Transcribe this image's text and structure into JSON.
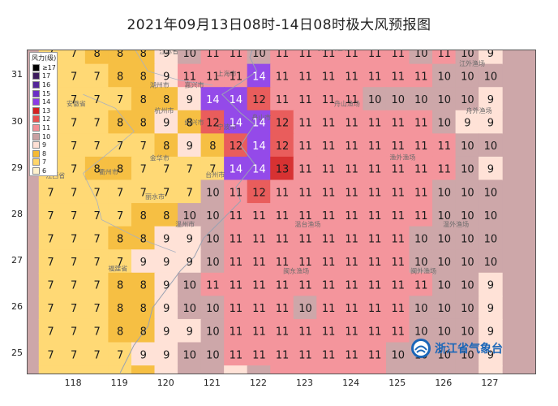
{
  "title": "2021年09月13日08时-14日08时极大风预报图",
  "map": {
    "lon_ticks": [
      "118",
      "119",
      "120",
      "121",
      "122",
      "123",
      "124",
      "125",
      "126",
      "127"
    ],
    "lat_ticks": [
      "31",
      "30",
      "29",
      "28",
      "27",
      "26",
      "25"
    ],
    "lon_range": [
      117.0,
      128.0
    ],
    "lat_range": [
      24.55,
      31.55
    ],
    "grid_lon_start": 117.5,
    "grid_lat_start": 31.5,
    "grid_step": 0.5,
    "wind_force_grid": [
      [
        7,
        7,
        8,
        8,
        8,
        9,
        10,
        11,
        11,
        10,
        11,
        11,
        11,
        11,
        11,
        11,
        10,
        11,
        10,
        9
      ],
      [
        7,
        7,
        7,
        8,
        8,
        9,
        11,
        11,
        11,
        14,
        11,
        11,
        11,
        11,
        11,
        11,
        11,
        10,
        10,
        10
      ],
      [
        7,
        7,
        7,
        7,
        8,
        8,
        9,
        14,
        14,
        12,
        11,
        11,
        11,
        11,
        10,
        10,
        10,
        10,
        10,
        9
      ],
      [
        7,
        7,
        7,
        8,
        8,
        9,
        8,
        12,
        14,
        14,
        12,
        11,
        11,
        11,
        11,
        11,
        11,
        10,
        9,
        9
      ],
      [
        7,
        7,
        7,
        7,
        7,
        8,
        9,
        8,
        12,
        14,
        12,
        11,
        11,
        11,
        11,
        11,
        11,
        11,
        10,
        10
      ],
      [
        7,
        7,
        8,
        8,
        7,
        7,
        7,
        7,
        14,
        14,
        13,
        11,
        11,
        11,
        11,
        11,
        11,
        11,
        10,
        9
      ],
      [
        7,
        7,
        7,
        7,
        7,
        7,
        7,
        10,
        11,
        12,
        11,
        11,
        11,
        11,
        11,
        11,
        11,
        10,
        10,
        10
      ],
      [
        7,
        7,
        7,
        7,
        8,
        8,
        10,
        10,
        11,
        11,
        11,
        11,
        11,
        11,
        11,
        11,
        11,
        10,
        10,
        10
      ],
      [
        7,
        7,
        7,
        8,
        8,
        9,
        9,
        10,
        11,
        11,
        11,
        11,
        11,
        11,
        11,
        11,
        10,
        10,
        10,
        10
      ],
      [
        7,
        7,
        7,
        7,
        9,
        9,
        9,
        10,
        11,
        11,
        11,
        11,
        11,
        11,
        11,
        11,
        10,
        10,
        10,
        10
      ],
      [
        7,
        7,
        7,
        8,
        8,
        9,
        10,
        11,
        11,
        11,
        11,
        11,
        11,
        11,
        11,
        11,
        11,
        10,
        10,
        9
      ],
      [
        7,
        7,
        7,
        8,
        8,
        9,
        10,
        10,
        11,
        11,
        11,
        10,
        11,
        11,
        11,
        11,
        10,
        10,
        10,
        9
      ],
      [
        7,
        7,
        7,
        8,
        8,
        9,
        9,
        10,
        11,
        11,
        11,
        11,
        11,
        11,
        11,
        11,
        10,
        10,
        10,
        9
      ],
      [
        7,
        7,
        7,
        7,
        9,
        9,
        10,
        10,
        11,
        11,
        11,
        11,
        11,
        11,
        11,
        10,
        10,
        10,
        10,
        9
      ],
      [
        7,
        7,
        7,
        7,
        8,
        9,
        10,
        10,
        9,
        10,
        11,
        11,
        11,
        11,
        11,
        10,
        10,
        10,
        10,
        9
      ],
      [
        7,
        7,
        7,
        7,
        9,
        9,
        9,
        7,
        8,
        9,
        11,
        11,
        11,
        11,
        10,
        10,
        10,
        10,
        10,
        9
      ]
    ],
    "place_labels": [
      {
        "name": "江苏省",
        "lon": 120.05,
        "lat": 31.48
      },
      {
        "name": "上海市",
        "lon": 121.3,
        "lat": 31.0
      },
      {
        "name": "湖州市",
        "lon": 119.85,
        "lat": 30.75
      },
      {
        "name": "嘉兴市",
        "lon": 120.6,
        "lat": 30.75
      },
      {
        "name": "安徽省",
        "lon": 118.05,
        "lat": 30.35
      },
      {
        "name": "杭州市",
        "lon": 119.95,
        "lat": 30.2
      },
      {
        "name": "舟山市",
        "lon": 122.05,
        "lat": 30.05
      },
      {
        "name": "宁波市",
        "lon": 121.3,
        "lat": 29.85
      },
      {
        "name": "绍兴市",
        "lon": 120.6,
        "lat": 29.95
      },
      {
        "name": "金华市",
        "lon": 119.85,
        "lat": 29.18
      },
      {
        "name": "衢州市",
        "lon": 118.75,
        "lat": 28.88
      },
      {
        "name": "台州市",
        "lon": 121.05,
        "lat": 28.82
      },
      {
        "name": "江西省",
        "lon": 117.6,
        "lat": 28.8
      },
      {
        "name": "丽水市",
        "lon": 119.75,
        "lat": 28.35
      },
      {
        "name": "温州市",
        "lon": 120.4,
        "lat": 27.75
      },
      {
        "name": "福建省",
        "lon": 118.95,
        "lat": 26.8
      },
      {
        "name": "长江口渔场",
        "lon": 123.6,
        "lat": 31.55
      },
      {
        "name": "江外渔场",
        "lon": 126.6,
        "lat": 31.22
      },
      {
        "name": "舟山渔场",
        "lon": 123.9,
        "lat": 30.35
      },
      {
        "name": "舟外渔场",
        "lon": 126.75,
        "lat": 30.2
      },
      {
        "name": "渔外渔场",
        "lon": 125.1,
        "lat": 29.2
      },
      {
        "name": "温台渔场",
        "lon": 123.05,
        "lat": 27.75
      },
      {
        "name": "温外渔场",
        "lon": 126.25,
        "lat": 27.75
      },
      {
        "name": "闽东渔场",
        "lon": 122.8,
        "lat": 26.75
      },
      {
        "name": "闽外渔场",
        "lon": 125.55,
        "lat": 26.75
      }
    ]
  },
  "legend": {
    "title": "风力(级)",
    "entries": [
      {
        "label": "≥17",
        "color": "#000000"
      },
      {
        "label": "17",
        "color": "#3b1b5c"
      },
      {
        "label": "16",
        "color": "#54269a"
      },
      {
        "label": "15",
        "color": "#6a2fc7"
      },
      {
        "label": "14",
        "color": "#8b3be8"
      },
      {
        "label": "13",
        "color": "#d42121"
      },
      {
        "label": "12",
        "color": "#e8504f"
      },
      {
        "label": "11",
        "color": "#f38d94"
      },
      {
        "label": "10",
        "color": "#c9a0a2"
      },
      {
        "label": "9",
        "color": "#ffe0d4"
      },
      {
        "label": "8",
        "color": "#f6ba34"
      },
      {
        "label": "7",
        "color": "#ffd66a"
      },
      {
        "label": "6",
        "color": "#fff2cc"
      }
    ]
  },
  "logo": {
    "text": "浙江省气象台",
    "icon": "cma-logo-icon"
  },
  "colors": {
    "land_line": "#9aa2b2",
    "label": "#6b6b6b",
    "frame": "#555555"
  }
}
